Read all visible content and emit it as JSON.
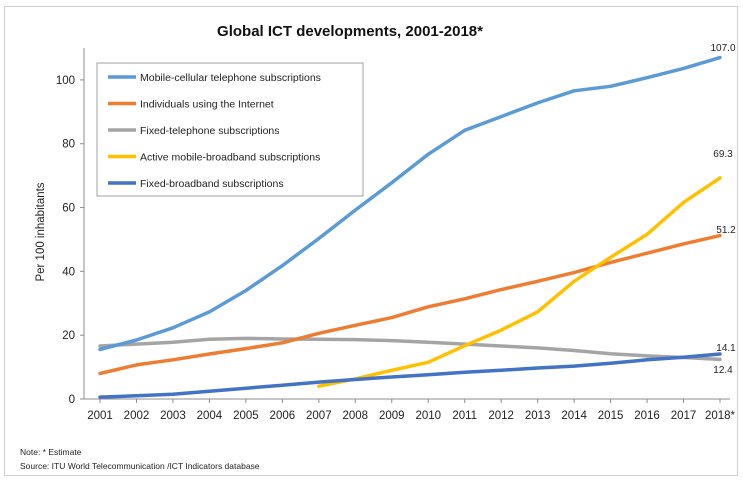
{
  "chart_data": {
    "type": "line",
    "title": "Global ICT developments, 2001-2018*",
    "ylabel": "Per 100 inhabitants",
    "xlabel": "",
    "ylim": [
      0,
      110
    ],
    "yticks": [
      0,
      20,
      40,
      60,
      80,
      100
    ],
    "categories": [
      "2001",
      "2002",
      "2003",
      "2004",
      "2005",
      "2006",
      "2007",
      "2008",
      "2009",
      "2010",
      "2011",
      "2012",
      "2013",
      "2014",
      "2015",
      "2016",
      "2017",
      "2018*"
    ],
    "grid": false,
    "legend_position": "top-left",
    "series": [
      {
        "name": "Mobile-cellular telephone subscriptions",
        "color": "#5b9bd5",
        "values": [
          15.5,
          18.5,
          22.3,
          27.3,
          34.0,
          41.8,
          50.3,
          59.2,
          67.8,
          76.7,
          84.2,
          88.5,
          92.8,
          96.6,
          98.0,
          100.7,
          103.6,
          107.0
        ],
        "end_label": "107.0"
      },
      {
        "name": "Individuals using the Internet",
        "color": "#ed7d31",
        "values": [
          8.0,
          10.7,
          12.3,
          14.1,
          15.8,
          17.6,
          20.6,
          23.1,
          25.5,
          28.9,
          31.4,
          34.3,
          36.9,
          39.6,
          42.8,
          45.7,
          48.6,
          51.2
        ],
        "end_label": "51.2"
      },
      {
        "name": "Fixed-telephone subscriptions",
        "color": "#a5a5a5",
        "values": [
          16.6,
          17.2,
          17.8,
          18.7,
          19.0,
          18.8,
          18.7,
          18.6,
          18.3,
          17.8,
          17.2,
          16.6,
          16.0,
          15.2,
          14.2,
          13.5,
          13.0,
          12.4
        ],
        "end_label": "12.4"
      },
      {
        "name": "Active mobile-broadband subscriptions",
        "color": "#ffc000",
        "values": [
          null,
          null,
          null,
          null,
          null,
          null,
          4.0,
          6.3,
          9.0,
          11.5,
          16.7,
          21.6,
          27.3,
          36.9,
          44.4,
          51.6,
          61.6,
          69.3
        ],
        "end_label": "69.3"
      },
      {
        "name": "Fixed-broadband subscriptions",
        "color": "#4472c4",
        "values": [
          0.6,
          1.0,
          1.5,
          2.4,
          3.4,
          4.3,
          5.3,
          6.1,
          6.9,
          7.6,
          8.4,
          9.0,
          9.7,
          10.3,
          11.2,
          12.3,
          13.1,
          14.1
        ],
        "end_label": "14.1"
      }
    ]
  },
  "notes": {
    "note": "Note: * Estimate",
    "source": "Source:  ITU World Telecommunication /ICT Indicators database"
  }
}
